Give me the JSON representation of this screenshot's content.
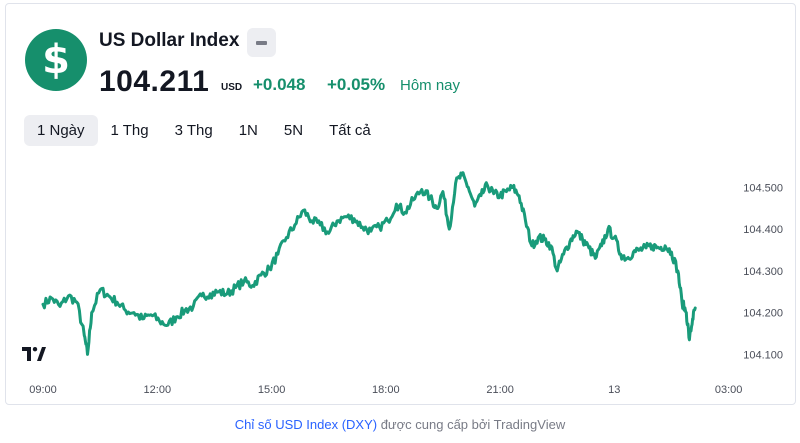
{
  "header": {
    "logo_icon": "dollar-sign-icon",
    "logo_glyph": "$",
    "title": "US Dollar Index",
    "badge_icon": "minus-icon",
    "price": "104.211",
    "currency": "USD",
    "change_abs": "+0.048",
    "change_pct": "+0.05%",
    "period": "Hôm nay"
  },
  "range_tabs": [
    {
      "label": "1 Ngày",
      "active": true
    },
    {
      "label": "1 Thg",
      "active": false
    },
    {
      "label": "3 Thg",
      "active": false
    },
    {
      "label": "1N",
      "active": false
    },
    {
      "label": "5N",
      "active": false
    },
    {
      "label": "Tất cả",
      "active": false
    }
  ],
  "tv_logo_icon": "tradingview-logo-icon",
  "footer": {
    "link_text": "Chỉ số USD Index (DXY)",
    "suffix": " được cung cấp bởi TradingView"
  },
  "colors": {
    "line": "#199b7a",
    "positive": "#168f6c",
    "logo_bg": "#168f6c",
    "axis_text": "#4a4e59",
    "link": "#2962ff"
  },
  "chart_data": {
    "type": "line",
    "series": [
      {
        "values": [
          [
            0,
            104.22
          ],
          [
            0.4,
            104.235
          ],
          [
            0.8,
            104.215
          ],
          [
            1.2,
            104.24
          ],
          [
            1.6,
            104.225
          ],
          [
            1.95,
            104.145
          ],
          [
            2.1,
            104.1
          ],
          [
            2.3,
            104.2
          ],
          [
            2.7,
            104.255
          ],
          [
            3.1,
            104.24
          ],
          [
            3.5,
            104.225
          ],
          [
            3.9,
            104.205
          ],
          [
            4.3,
            104.2
          ],
          [
            4.7,
            104.185
          ],
          [
            5.1,
            104.195
          ],
          [
            5.5,
            104.18
          ],
          [
            5.9,
            104.17
          ],
          [
            6.3,
            104.19
          ],
          [
            6.7,
            104.205
          ],
          [
            7.1,
            104.215
          ],
          [
            7.5,
            104.24
          ],
          [
            7.9,
            104.245
          ],
          [
            8.3,
            104.25
          ],
          [
            8.7,
            104.245
          ],
          [
            9.1,
            104.26
          ],
          [
            9.5,
            104.275
          ],
          [
            9.9,
            104.265
          ],
          [
            10.3,
            104.29
          ],
          [
            10.7,
            104.305
          ],
          [
            11.1,
            104.34
          ],
          [
            11.5,
            104.38
          ],
          [
            11.9,
            104.41
          ],
          [
            12.3,
            104.445
          ],
          [
            12.7,
            104.42
          ],
          [
            13.1,
            104.41
          ],
          [
            13.5,
            104.39
          ],
          [
            13.9,
            104.42
          ],
          [
            14.3,
            104.43
          ],
          [
            14.7,
            104.425
          ],
          [
            15.1,
            104.405
          ],
          [
            15.5,
            104.395
          ],
          [
            15.9,
            104.405
          ],
          [
            16.3,
            104.42
          ],
          [
            16.7,
            104.46
          ],
          [
            17.1,
            104.44
          ],
          [
            17.5,
            104.47
          ],
          [
            17.9,
            104.495
          ],
          [
            18.3,
            104.475
          ],
          [
            18.6,
            104.45
          ],
          [
            18.9,
            104.49
          ],
          [
            19.2,
            104.4
          ],
          [
            19.5,
            104.51
          ],
          [
            19.8,
            104.53
          ],
          [
            20.1,
            104.5
          ],
          [
            20.4,
            104.455
          ],
          [
            20.7,
            104.48
          ],
          [
            21.0,
            104.505
          ],
          [
            21.3,
            104.485
          ],
          [
            21.6,
            104.48
          ],
          [
            21.9,
            104.49
          ],
          [
            22.2,
            104.5
          ],
          [
            22.5,
            104.48
          ],
          [
            22.8,
            104.42
          ],
          [
            23.1,
            104.36
          ],
          [
            23.4,
            104.38
          ],
          [
            23.7,
            104.375
          ],
          [
            24.0,
            104.36
          ],
          [
            24.3,
            104.3
          ],
          [
            24.6,
            104.34
          ],
          [
            24.9,
            104.37
          ],
          [
            25.2,
            104.395
          ],
          [
            25.5,
            104.375
          ],
          [
            25.8,
            104.355
          ],
          [
            26.1,
            104.33
          ],
          [
            26.4,
            104.36
          ],
          [
            26.7,
            104.4
          ],
          [
            27.0,
            104.38
          ],
          [
            27.3,
            104.34
          ],
          [
            27.6,
            104.33
          ],
          [
            27.9,
            104.345
          ],
          [
            28.2,
            104.35
          ],
          [
            28.5,
            104.355
          ],
          [
            28.8,
            104.36
          ],
          [
            29.1,
            104.355
          ],
          [
            29.4,
            104.36
          ],
          [
            29.7,
            104.345
          ],
          [
            30.0,
            104.3
          ],
          [
            30.2,
            104.225
          ],
          [
            30.4,
            104.2
          ],
          [
            30.55,
            104.135
          ],
          [
            30.7,
            104.185
          ],
          [
            30.82,
            104.211
          ]
        ]
      }
    ],
    "x_ticks": [
      "09:00",
      "12:00",
      "15:00",
      "18:00",
      "21:00",
      "13",
      "03:00"
    ],
    "y_ticks": [
      "104.500",
      "104.400",
      "104.300",
      "104.200",
      "104.100"
    ],
    "xlim": [
      -1.75,
      32.75
    ],
    "ylim": [
      104.053,
      104.58
    ],
    "grid": false,
    "legend": false
  }
}
